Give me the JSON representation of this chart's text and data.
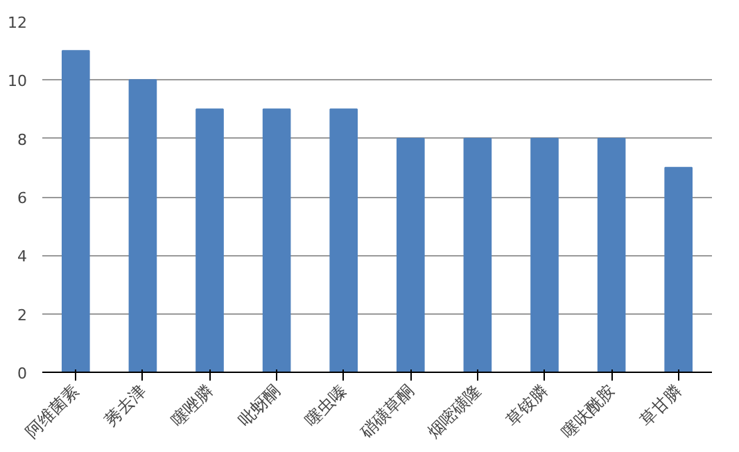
{
  "chart_data": {
    "type": "bar",
    "categories": [
      "阿维菌素",
      "莠去津",
      "噻唑膦",
      "吡蚜酮",
      "噻虫嗪",
      "硝磺草酮",
      "烟嘧磺隆",
      "草铵膦",
      "噻呋酰胺",
      "草甘膦"
    ],
    "values": [
      11,
      10,
      9,
      9,
      9,
      8,
      8,
      8,
      8,
      7
    ],
    "color": "#4f81bd",
    "ylim": [
      0,
      12
    ],
    "yticks": [
      0,
      2,
      4,
      6,
      8,
      10,
      12
    ],
    "grid": "y"
  }
}
